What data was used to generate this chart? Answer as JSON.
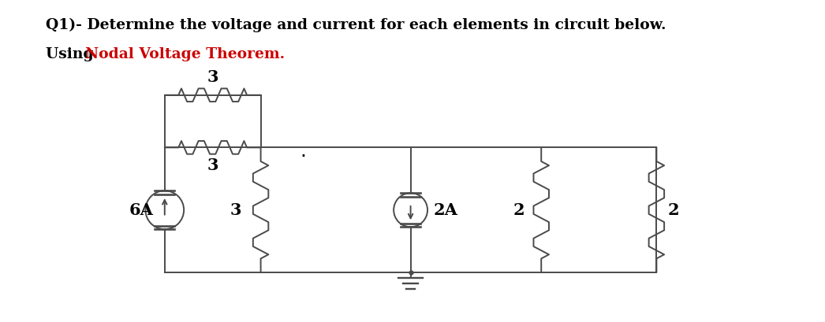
{
  "title_line1": "Q1)- Determine the voltage and current for each elements in circuit below.",
  "title_line2_black": "Using ",
  "title_line2_red": "Nodal Voltage Theorem.",
  "bg_color": "#ffffff",
  "line_color": "#4a4a4a",
  "text_color": "#000000",
  "red_color": "#cc0000",
  "font_size_title": 13.5,
  "font_size_circuit": 15
}
